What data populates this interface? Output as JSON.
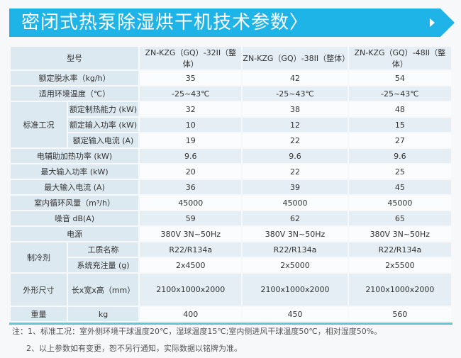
{
  "banner": {
    "title": "密闭式热泵除湿烘干机技术参数〉",
    "arrow_icon": "triangle-right-icon",
    "color": "#1fb4e8"
  },
  "table": {
    "header": {
      "label": "型号",
      "models": [
        "ZN-KZG（GQ）-32II（整体）",
        "ZN-KZG（GQ）-38II（整体）",
        "ZN-KZG（GQ）-48II（整体）"
      ]
    },
    "rows": [
      {
        "label": "额定脱水率（kg/h）",
        "values": [
          "35",
          "42",
          "54"
        ]
      },
      {
        "label": "适用环境温度（℃）",
        "values": [
          "-25~43℃",
          "-25~43℃",
          "-25~43℃"
        ]
      },
      {
        "group": "标准工况",
        "label": "额定制热能力 (kW)",
        "values": [
          "32",
          "38",
          "48"
        ]
      },
      {
        "label": "额定输入功率 (kW)",
        "values": [
          "10",
          "12",
          "15"
        ]
      },
      {
        "label": "额定输入电流 (A)",
        "values": [
          "19",
          "22",
          "27"
        ]
      },
      {
        "label": "电辅助加热功率 (kW)",
        "values": [
          "9.6",
          "9.6",
          "9.6"
        ]
      },
      {
        "label": "最大输入功率 (kW)",
        "values": [
          "20",
          "22",
          "25"
        ]
      },
      {
        "label": "最大输入电流 (A)",
        "values": [
          "36",
          "39",
          "45"
        ]
      },
      {
        "label": "室内循环风量（m³/h）",
        "values": [
          "45000",
          "45000",
          "45000"
        ]
      },
      {
        "label": "噪音 dB(A)",
        "values": [
          "59",
          "62",
          "65"
        ]
      },
      {
        "label": "电源",
        "values": [
          "380V 3N~50Hz",
          "380V 3N~50Hz",
          "380V 3N~50Hz"
        ]
      },
      {
        "group": "制冷剂",
        "label": "工质名称",
        "values": [
          "R22/R134a",
          "R22/R134a",
          "R22/R134a"
        ]
      },
      {
        "label": "系统充注量 (g)",
        "values": [
          "2x4500",
          "2x5000",
          "2x5500"
        ]
      },
      {
        "group": "外形尺寸",
        "label": "长x宽x高（mm）",
        "values": [
          "2100x1000x2000",
          "2100x1000x2000",
          "2100x1000x2000"
        ]
      },
      {
        "group": "重量",
        "label": "kg",
        "values": [
          "400",
          "450",
          "560"
        ]
      }
    ]
  },
  "notes": [
    "注：1、标准工况：室外侧环境干球温度20℃，湿球温度15℃;室内侧进风干球温度50℃，相对湿度50%。",
    "2、以上参数如有变更，恕不另行通知，实际数据以铭牌为准。"
  ]
}
